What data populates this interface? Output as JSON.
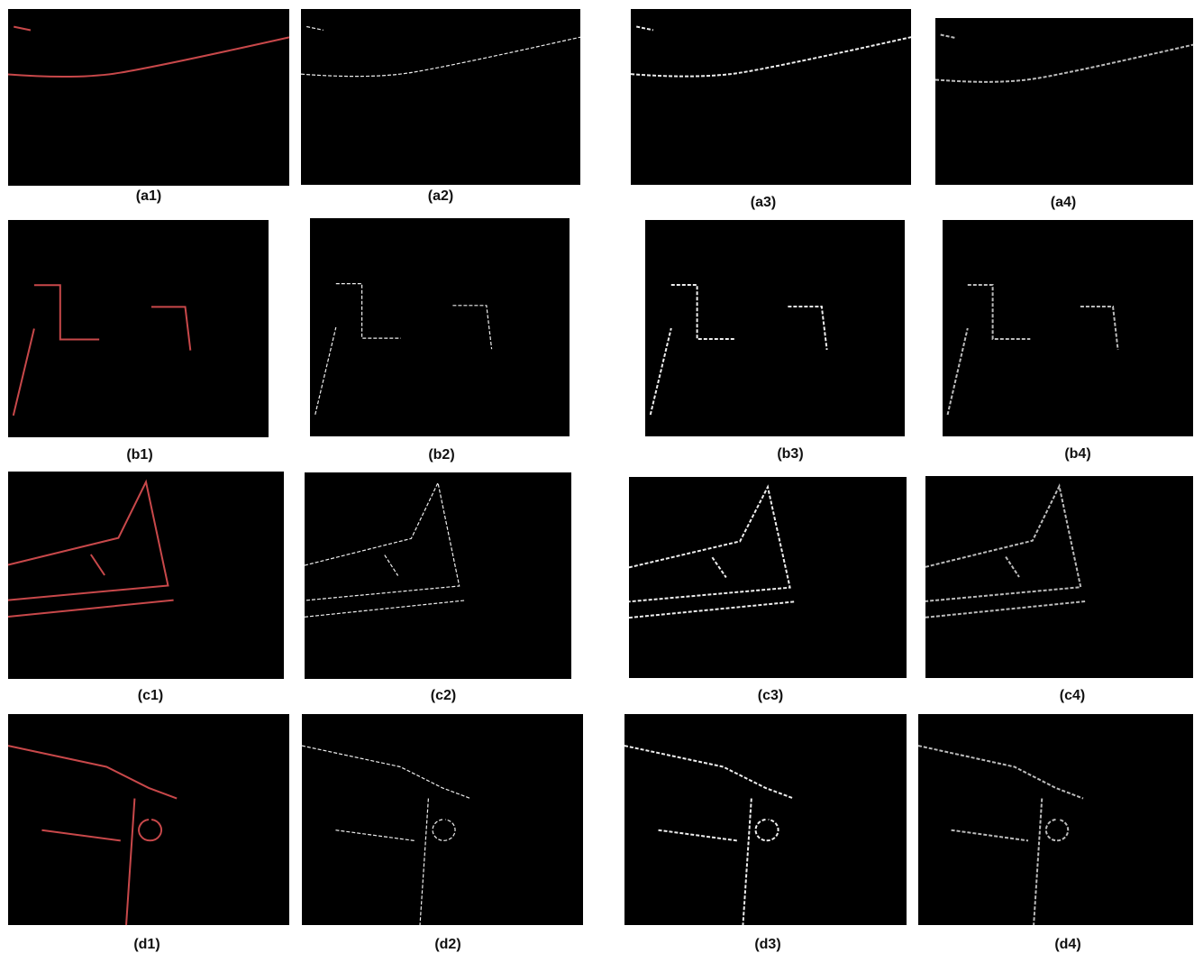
{
  "panels": [
    {
      "label": "(a1)"
    },
    {
      "label": "(a2)"
    },
    {
      "label": "(a3)"
    },
    {
      "label": "(a4)"
    },
    {
      "label": "(b1)"
    },
    {
      "label": "(b2)"
    },
    {
      "label": "(b3)"
    },
    {
      "label": "(b4)"
    },
    {
      "label": "(c1)"
    },
    {
      "label": "(c2)"
    },
    {
      "label": "(c3)"
    },
    {
      "label": "(c4)"
    },
    {
      "label": "(d1)"
    },
    {
      "label": "(d2)"
    },
    {
      "label": "(d3)"
    },
    {
      "label": "(d4)"
    }
  ]
}
